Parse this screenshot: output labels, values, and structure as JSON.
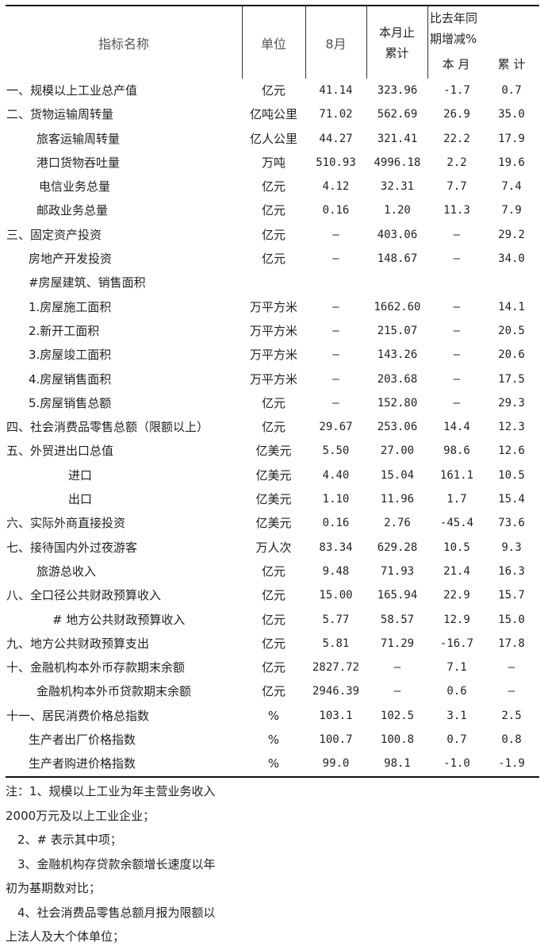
{
  "header": {
    "name": "指标名称",
    "unit": "单位",
    "month": "8月",
    "cumulative": "本月止累计",
    "yoy": "比去年同期增减%",
    "yoy_month": "本 月",
    "yoy_cum": "累 计"
  },
  "rows": [
    [
      "一、规模以上工业总产值",
      "亿元",
      "41.14",
      "323.96",
      "-1.7",
      "0.7"
    ],
    [
      "二、货物运输周转量",
      "亿吨公里",
      "71.02",
      "562.69",
      "26.9",
      "35.0"
    ],
    [
      "旅客运输周转量",
      "亿人公里",
      "44.27",
      "321.41",
      "22.2",
      "17.9"
    ],
    [
      "港口货物吞吐量",
      "万吨",
      "510.93",
      "4996.18",
      "2.2",
      "19.6"
    ],
    [
      "电信业务总量",
      "亿元",
      "4.12",
      "32.31",
      "7.7",
      "7.4"
    ],
    [
      "邮政业务总量",
      "亿元",
      "0.16",
      "1.20",
      "11.3",
      "7.9"
    ],
    [
      "三、固定资产投资",
      "亿元",
      "—",
      "403.06",
      "—",
      "29.2"
    ],
    [
      "房地产开发投资",
      "亿元",
      "—",
      "148.67",
      "—",
      "34.0"
    ],
    [
      "#房屋建筑、销售面积",
      "",
      "",
      "",
      "",
      ""
    ],
    [
      "1.房屋施工面积",
      "万平方米",
      "—",
      "1662.60",
      "—",
      "14.1"
    ],
    [
      "2.新开工面积",
      "万平方米",
      "—",
      "215.07",
      "—",
      "20.5"
    ],
    [
      "3.房屋竣工面积",
      "万平方米",
      "—",
      "143.26",
      "—",
      "20.6"
    ],
    [
      "4.房屋销售面积",
      "万平方米",
      "—",
      "203.68",
      "—",
      "17.5"
    ],
    [
      "5.房屋销售总额",
      "亿元",
      "—",
      "152.80",
      "—",
      "29.3"
    ],
    [
      "四、社会消费品零售总额（限额以上）",
      "亿元",
      "29.67",
      "253.06",
      "14.4",
      "12.3"
    ],
    [
      "五、外贸进出口总值",
      "亿美元",
      "5.50",
      "27.00",
      "98.6",
      "12.6"
    ],
    [
      "进口",
      "亿美元",
      "4.40",
      "15.04",
      "161.1",
      "10.5"
    ],
    [
      "出口",
      "亿美元",
      "1.10",
      "11.96",
      "1.7",
      "15.4"
    ],
    [
      "六、实际外商直接投资",
      "亿美元",
      "0.16",
      "2.76",
      "-45.4",
      "73.6"
    ],
    [
      "七、接待国内外过夜游客",
      "万人次",
      "83.34",
      "629.28",
      "10.5",
      "9.3"
    ],
    [
      "旅游总收入",
      "亿元",
      "9.48",
      "71.93",
      "21.4",
      "16.3"
    ],
    [
      "八、全口径公共财政预算收入",
      "亿元",
      "15.00",
      "165.94",
      "22.9",
      "15.7"
    ],
    [
      "# 地方公共财政预算收入",
      "亿元",
      "5.77",
      "58.57",
      "12.9",
      "15.0"
    ],
    [
      "九、地方公共财政预算支出",
      "亿元",
      "5.81",
      "71.29",
      "-16.7",
      "17.8"
    ],
    [
      "十、金融机构本外币存款期末余额",
      "亿元",
      "2827.72",
      "—",
      "7.1",
      "—"
    ],
    [
      "金融机构本外币贷款期末余额",
      "亿元",
      "2946.39",
      "—",
      "0.6",
      "—"
    ],
    [
      "十一、居民消费价格总指数",
      "%",
      "103.1",
      "102.5",
      "3.1",
      "2.5"
    ],
    [
      "生产者出厂价格指数",
      "%",
      "100.7",
      "100.8",
      "0.7",
      "0.8"
    ],
    [
      "生产者购进价格指数",
      "%",
      "99.0",
      "98.1",
      "-1.0",
      "-1.9"
    ]
  ],
  "notes": [
    "注：1、规模以上工业为年主营业务收入",
    "2000万元及以上工业企业；",
    "　2、# 表示其中项；",
    "　3、金融机构存贷款余额增长速度以年",
    "初为基期数对比；",
    "　4、社会消费品零售总额月报为限额以",
    "上法人及大个体单位；"
  ]
}
